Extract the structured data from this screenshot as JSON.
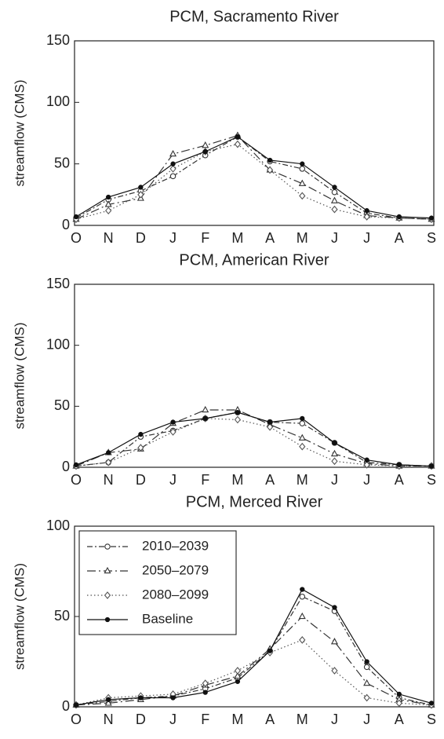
{
  "chart_data": [
    {
      "type": "line",
      "title": "PCM, Sacramento River",
      "y_label": "streamflow (CMS)",
      "categories": [
        "O",
        "N",
        "D",
        "J",
        "F",
        "M",
        "A",
        "M",
        "J",
        "J",
        "A",
        "S"
      ],
      "ylim": [
        0,
        150
      ],
      "yticks": [
        0,
        50,
        100,
        150
      ],
      "legend": false,
      "series": [
        {
          "color": "#333333",
          "dash": "7 3 2 3",
          "marker": "circle",
          "values": [
            6,
            21,
            28,
            40,
            57,
            72,
            52,
            46,
            27,
            10,
            6,
            5
          ]
        },
        {
          "color": "#333333",
          "dash": "11 4 2 4",
          "marker": "triangle",
          "values": [
            5,
            17,
            22,
            58,
            65,
            73,
            45,
            34,
            20,
            8,
            6,
            5
          ]
        },
        {
          "color": "#555555",
          "dash": "1.5 3",
          "marker": "diamond",
          "values": [
            5,
            12,
            25,
            46,
            60,
            66,
            45,
            24,
            13,
            7,
            6,
            5
          ]
        },
        {
          "color": "#111111",
          "dash": "none",
          "marker": "dot",
          "values": [
            7,
            23,
            31,
            50,
            60,
            72,
            53,
            50,
            31,
            12,
            7,
            6
          ]
        }
      ]
    },
    {
      "type": "line",
      "title": "PCM, American River",
      "y_label": "streamflow (CMS)",
      "categories": [
        "O",
        "N",
        "D",
        "J",
        "F",
        "M",
        "A",
        "M",
        "J",
        "J",
        "A",
        "S"
      ],
      "ylim": [
        0,
        150
      ],
      "yticks": [
        0,
        50,
        100,
        150
      ],
      "legend": false,
      "series": [
        {
          "color": "#333333",
          "dash": "7 3 2 3",
          "marker": "circle",
          "values": [
            1,
            4,
            25,
            30,
            40,
            45,
            37,
            36,
            20,
            4,
            2,
            1
          ]
        },
        {
          "color": "#333333",
          "dash": "11 4 2 4",
          "marker": "triangle",
          "values": [
            1,
            12,
            15,
            36,
            47,
            47,
            35,
            24,
            11,
            3,
            1,
            1
          ]
        },
        {
          "color": "#555555",
          "dash": "1.5 3",
          "marker": "diamond",
          "values": [
            1,
            4,
            16,
            29,
            40,
            39,
            33,
            17,
            5,
            2,
            1,
            1
          ]
        },
        {
          "color": "#111111",
          "dash": "none",
          "marker": "dot",
          "values": [
            2,
            12,
            27,
            37,
            40,
            45,
            37,
            40,
            20,
            6,
            2,
            1
          ]
        }
      ]
    },
    {
      "type": "line",
      "title": "PCM, Merced River",
      "y_label": "streamflow (CMS)",
      "categories": [
        "O",
        "N",
        "D",
        "J",
        "F",
        "M",
        "A",
        "M",
        "J",
        "J",
        "A",
        "S"
      ],
      "ylim": [
        0,
        100
      ],
      "yticks": [
        0,
        50,
        100
      ],
      "legend": "upper left",
      "series": [
        {
          "name": "2010–2039",
          "color": "#333333",
          "dash": "7 3 2 3",
          "marker": "circle",
          "values": [
            1,
            3,
            5,
            6,
            10,
            16,
            31,
            61,
            53,
            22,
            5,
            1
          ]
        },
        {
          "name": "2050–2079",
          "color": "#333333",
          "dash": "11 4 2 4",
          "marker": "triangle",
          "values": [
            1,
            2,
            4,
            6,
            12,
            17,
            32,
            50,
            36,
            13,
            4,
            1
          ]
        },
        {
          "name": "2080–2099",
          "color": "#555555",
          "dash": "1.5 3",
          "marker": "diamond",
          "values": [
            1,
            5,
            6,
            7,
            13,
            20,
            30,
            37,
            20,
            5,
            2,
            1
          ]
        },
        {
          "name": "Baseline",
          "color": "#111111",
          "dash": "none",
          "marker": "dot",
          "values": [
            1,
            4,
            5,
            5,
            8,
            14,
            31,
            65,
            55,
            25,
            7,
            2
          ]
        }
      ]
    }
  ]
}
